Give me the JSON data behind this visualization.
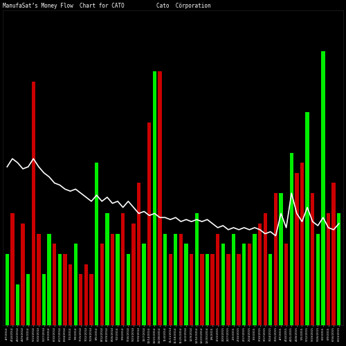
{
  "title": "ManufaSat’s Money Flow  Chart for CATO          Cato  Cörporation",
  "background_color": "#000000",
  "green_color": "#00ee00",
  "red_color": "#cc0000",
  "line_color": "#ffffff",
  "dates": [
    "4/7/2014 4/4%",
    "4/14/2014 4/4%",
    "4/22/2014 4/4%",
    "4/29/2014 4/4%",
    "5/6/2014 5/4%",
    "5/13/2014 5/4%",
    "5/20/2014 5/4%",
    "5/27/2014 5/4%",
    "6/3/2014 6/4%",
    "6/10/2014 6/4%",
    "6/17/2014 6/4%",
    "6/24/2014 6/4%",
    "7/1/2014 7/4%",
    "7/8/2014 7/4%",
    "7/15/2014 7/4%",
    "7/22/2014 7/4%",
    "7/29/2014 7/4%",
    "8/5/2014 8/4%",
    "8/12/2014 8/4%",
    "8/19/2014 8/4%",
    "8/26/2014 8/4%",
    "9/2/2014 9/4%",
    "9/9/2014 9/4%",
    "9/16/2014 9/4%",
    "9/23/2014 9/4%",
    "9/30/2014 9/4%",
    "10/7/2014 10/4%",
    "10/14/2014 10/4%",
    "10/21/2014 10/4%",
    "10/28/2014 10/4%",
    "11/4/2014 11/4%",
    "11/11/2014 11/4%",
    "11/18/2014 11/4%",
    "11/25/2014 11/4%",
    "12/2/2014 12/4%",
    "12/9/2014 12/4%",
    "12/16/2014 12/4%",
    "12/23/2014 12/4%",
    "12/30/2014 12/4%",
    "1/6/2015 1/4%",
    "1/13/2015 1/4%",
    "1/20/2015 1/4%",
    "1/27/2015 1/4%",
    "2/3/2015 2/4%",
    "2/10/2015 2/4%",
    "2/17/2015 2/4%",
    "2/24/2015 2/4%",
    "3/3/2015 3/4%",
    "3/10/2015 3/4%",
    "3/17/2015 3/4%",
    "3/24/2015 3/4%",
    "3/31/2015 3/4%",
    "4/7/2015 4/4%",
    "4/14/2015 4/4%",
    "4/21/2015 4/4%",
    "4/28/2015 4/4%",
    "5/5/2015 5/4%",
    "5/12/2015 5/4%",
    "5/19/2015 5/4%",
    "5/26/2015 5/4%",
    "6/2/2015 6/4%",
    "6/9/2015 6/4%",
    "6/16/2015 6/4%",
    "6/23/2015 6/4%"
  ],
  "bar_heights": [
    3.5,
    5.5,
    2.0,
    5.0,
    2.5,
    12.0,
    4.5,
    2.5,
    4.5,
    4.0,
    3.5,
    3.5,
    3.0,
    4.0,
    2.5,
    3.0,
    2.5,
    8.0,
    4.0,
    5.5,
    4.5,
    4.5,
    5.5,
    3.5,
    5.0,
    7.0,
    4.0,
    10.0,
    12.5,
    12.5,
    4.5,
    3.5,
    4.5,
    4.5,
    4.0,
    3.5,
    5.5,
    3.5,
    3.5,
    3.5,
    4.5,
    4.0,
    3.5,
    4.5,
    3.5,
    4.0,
    4.0,
    4.5,
    5.0,
    5.5,
    3.5,
    6.5,
    6.5,
    4.0,
    8.5,
    7.5,
    8.0,
    10.5,
    6.5,
    4.5,
    13.5,
    5.5,
    7.0,
    5.5
  ],
  "bar_colors_flag": [
    1,
    0,
    1,
    0,
    1,
    0,
    0,
    1,
    1,
    0,
    1,
    0,
    0,
    1,
    0,
    0,
    0,
    1,
    0,
    1,
    0,
    1,
    0,
    1,
    0,
    0,
    1,
    0,
    1,
    0,
    1,
    0,
    1,
    0,
    1,
    0,
    1,
    0,
    1,
    0,
    0,
    1,
    0,
    1,
    0,
    1,
    0,
    1,
    0,
    0,
    1,
    0,
    1,
    0,
    1,
    0,
    0,
    1,
    0,
    1,
    1,
    0,
    0,
    1
  ],
  "line_values": [
    7.8,
    8.2,
    8.0,
    7.7,
    7.8,
    8.2,
    7.8,
    7.5,
    7.3,
    7.0,
    6.9,
    6.7,
    6.6,
    6.7,
    6.5,
    6.3,
    6.1,
    6.4,
    6.1,
    6.3,
    6.0,
    6.1,
    5.8,
    6.1,
    5.8,
    5.5,
    5.6,
    5.4,
    5.5,
    5.3,
    5.3,
    5.2,
    5.3,
    5.1,
    5.2,
    5.1,
    5.2,
    5.1,
    5.2,
    5.0,
    4.8,
    4.9,
    4.7,
    4.8,
    4.7,
    4.8,
    4.7,
    4.8,
    4.7,
    4.5,
    4.6,
    4.4,
    5.5,
    4.8,
    6.5,
    5.5,
    5.1,
    5.8,
    5.1,
    4.9,
    5.3,
    4.8,
    4.7,
    5.0
  ]
}
